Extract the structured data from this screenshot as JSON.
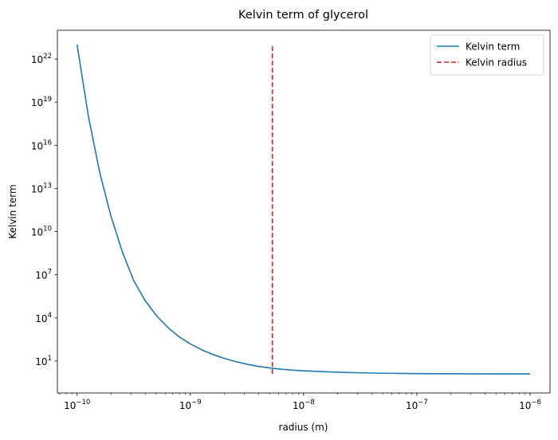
{
  "chart_data": {
    "type": "line",
    "title": "Kelvin term of glycerol",
    "xlabel": "radius (m)",
    "ylabel": "Kelvin term",
    "xscale": "log",
    "yscale": "log",
    "xlim": [
      6.7e-11,
      1.5e-06
    ],
    "ylim": [
      0.06,
      1e+24
    ],
    "xticks": [
      {
        "value": 1e-10,
        "base": "10",
        "exp": "−10"
      },
      {
        "value": 1e-09,
        "base": "10",
        "exp": "−9"
      },
      {
        "value": 1e-08,
        "base": "10",
        "exp": "−8"
      },
      {
        "value": 1e-07,
        "base": "10",
        "exp": "−7"
      },
      {
        "value": 1e-06,
        "base": "10",
        "exp": "−6"
      }
    ],
    "yticks": [
      {
        "value": 10,
        "base": "10",
        "exp": "1"
      },
      {
        "value": 10000.0,
        "base": "10",
        "exp": "4"
      },
      {
        "value": 10000000.0,
        "base": "10",
        "exp": "7"
      },
      {
        "value": 10000000000.0,
        "base": "10",
        "exp": "10"
      },
      {
        "value": 10000000000000.0,
        "base": "10",
        "exp": "13"
      },
      {
        "value": 1e+16,
        "base": "10",
        "exp": "16"
      },
      {
        "value": 1e+19,
        "base": "10",
        "exp": "19"
      },
      {
        "value": 1e+22,
        "base": "10",
        "exp": "22"
      }
    ],
    "series": [
      {
        "name": "Kelvin term",
        "style": "solid",
        "color": "#1f77b4",
        "x": [
          1e-10,
          1.259e-10,
          1.585e-10,
          1.995e-10,
          2.512e-10,
          3.162e-10,
          3.981e-10,
          5.012e-10,
          6.31e-10,
          7.943e-10,
          1e-09,
          1.259e-09,
          1.585e-09,
          1.995e-09,
          2.512e-09,
          3.162e-09,
          3.981e-09,
          5.012e-09,
          6.31e-09,
          7.943e-09,
          1e-08,
          1.585e-08,
          2.512e-08,
          3.981e-08,
          6.31e-08,
          1e-07,
          1.585e-07,
          2.512e-07,
          3.981e-07,
          6.31e-07,
          1e-06
        ],
        "y": [
          1e+23,
          1.02e+18,
          129000000000000.0,
          110000000000.0,
          390000000.0,
          3870000.0,
          164000.0,
          14500.0,
          2230.0,
          484,
          155,
          60,
          28.6,
          15.3,
          9.1,
          6.0,
          4.2,
          3.3,
          2.7,
          2.33,
          2.1,
          1.78,
          1.58,
          1.46,
          1.39,
          1.34,
          1.31,
          1.29,
          1.28,
          1.27,
          1.27
        ]
      },
      {
        "name": "Kelvin radius",
        "style": "dashed",
        "color": "#e31a1c",
        "x": [
          5.3e-09,
          5.3e-09
        ],
        "y": [
          1.27,
          1e+23
        ]
      }
    ],
    "legend": "top-right",
    "grid": false
  }
}
